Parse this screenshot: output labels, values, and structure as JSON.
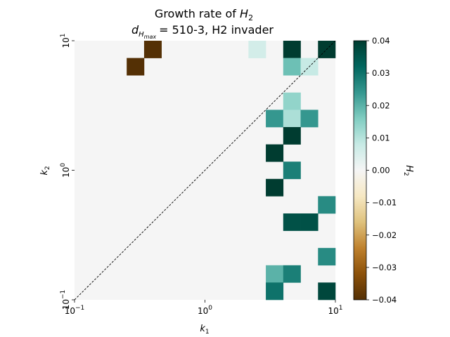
{
  "chart_data": {
    "type": "heatmap",
    "title_line1": "Growth rate of",
    "title_line1_symbol": "H",
    "title_line1_sub": "2",
    "title_line2_symbol": "d",
    "title_line2_sub1": "H",
    "title_line2_sub2": "max",
    "title_line2_rest": "= 510-3, H2 invader",
    "xlabel_symbol": "k",
    "xlabel_sub": "1",
    "ylabel_symbol": "k",
    "ylabel_sub": "2",
    "x_scale": "log",
    "y_scale": "log",
    "xlim": [
      0.1,
      10
    ],
    "ylim": [
      0.1,
      10
    ],
    "grid_size": 15,
    "x_tick_labels": [
      {
        "value": 0.1,
        "base": "10",
        "exp": "−1"
      },
      {
        "value": 1,
        "base": "10",
        "exp": "0"
      },
      {
        "value": 10,
        "base": "10",
        "exp": "1"
      }
    ],
    "y_tick_labels": [
      {
        "value": 0.1,
        "base": "10",
        "exp": "−1"
      },
      {
        "value": 1,
        "base": "10",
        "exp": "0"
      },
      {
        "value": 10,
        "base": "10",
        "exp": "1"
      }
    ],
    "background_value": 0.0,
    "cells": [
      {
        "i": 4,
        "j": 14,
        "value": -0.04
      },
      {
        "i": 3,
        "j": 13,
        "value": -0.04
      },
      {
        "i": 10,
        "j": 14,
        "value": 0.006
      },
      {
        "i": 12,
        "j": 14,
        "value": 0.04
      },
      {
        "i": 14,
        "j": 14,
        "value": 0.04
      },
      {
        "i": 12,
        "j": 13,
        "value": 0.018
      },
      {
        "i": 13,
        "j": 13,
        "value": 0.008
      },
      {
        "i": 12,
        "j": 11,
        "value": 0.014
      },
      {
        "i": 11,
        "j": 10,
        "value": 0.024
      },
      {
        "i": 12,
        "j": 10,
        "value": 0.011
      },
      {
        "i": 13,
        "j": 10,
        "value": 0.024
      },
      {
        "i": 12,
        "j": 9,
        "value": 0.04
      },
      {
        "i": 11,
        "j": 8,
        "value": 0.04
      },
      {
        "i": 12,
        "j": 7,
        "value": 0.028
      },
      {
        "i": 11,
        "j": 6,
        "value": 0.04
      },
      {
        "i": 14,
        "j": 5,
        "value": 0.026
      },
      {
        "i": 12,
        "j": 4,
        "value": 0.036
      },
      {
        "i": 13,
        "j": 4,
        "value": 0.036
      },
      {
        "i": 14,
        "j": 2,
        "value": 0.026
      },
      {
        "i": 11,
        "j": 1,
        "value": 0.02
      },
      {
        "i": 12,
        "j": 1,
        "value": 0.028
      },
      {
        "i": 11,
        "j": 0,
        "value": 0.03
      },
      {
        "i": 14,
        "j": 0,
        "value": 0.038
      }
    ],
    "diagonal_line": true,
    "colorbar": {
      "label_symbol": "H",
      "label_sub": "2",
      "vmin": -0.04,
      "vmax": 0.04,
      "ticks": [
        "0.04",
        "0.03",
        "0.02",
        "0.01",
        "0.00",
        "−0.01",
        "−0.02",
        "−0.03",
        "−0.04"
      ],
      "tick_values": [
        0.04,
        0.03,
        0.02,
        0.01,
        0.0,
        -0.01,
        -0.02,
        -0.03,
        -0.04
      ],
      "colormap": "BrBG",
      "colormap_stops": [
        "#543005",
        "#8c510a",
        "#bf812d",
        "#dfc27d",
        "#f6e8c3",
        "#f5f5f5",
        "#c7eae5",
        "#80cdc1",
        "#35978f",
        "#01665e",
        "#003c30"
      ]
    }
  }
}
